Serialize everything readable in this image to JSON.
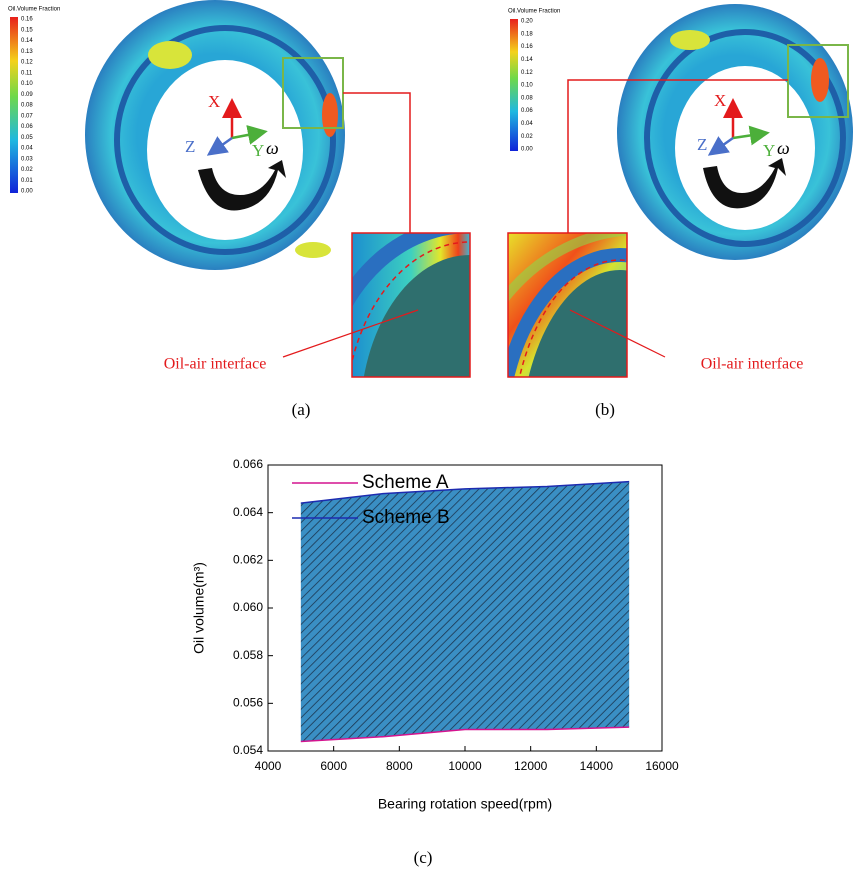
{
  "panel_a": {
    "colorbar": {
      "title": "Oil.Volume Fraction",
      "ticks": [
        "0.16",
        "0.15",
        "0.14",
        "0.13",
        "0.12",
        "0.11",
        "0.10",
        "0.09",
        "0.08",
        "0.07",
        "0.06",
        "0.05",
        "0.04",
        "0.03",
        "0.02",
        "0.01",
        "0.00"
      ]
    },
    "axes": {
      "x": "X",
      "y": "Y",
      "z": "Z",
      "omega": "ω"
    },
    "annotation": "Oil-air interface",
    "label": "(a)"
  },
  "panel_b": {
    "colorbar": {
      "title": "Oil.Volume Fraction",
      "ticks": [
        "0.20",
        "0.18",
        "0.16",
        "0.14",
        "0.12",
        "0.10",
        "0.08",
        "0.06",
        "0.04",
        "0.02",
        "0.00"
      ]
    },
    "axes": {
      "x": "X",
      "y": "Y",
      "z": "Z",
      "omega": "ω"
    },
    "annotation": "Oil-air interface",
    "label": "(b)"
  },
  "chart_data": {
    "type": "line",
    "x_label": "Bearing rotation speed(rpm)",
    "y_label": "Oil volume(m³)",
    "x": [
      5000,
      7500,
      10000,
      12500,
      15000
    ],
    "series": [
      {
        "name": "Scheme A",
        "color": "#d4138f",
        "values": [
          0.0544,
          0.0546,
          0.0549,
          0.0549,
          0.055
        ]
      },
      {
        "name": "Scheme B",
        "color": "#1d2bb0",
        "values": [
          0.0644,
          0.0648,
          0.065,
          0.0651,
          0.0653
        ]
      }
    ],
    "fill_between": {
      "color": "#3a8fc4",
      "hatch": "#1b3550"
    },
    "xlim": [
      4000,
      16000
    ],
    "xticks": [
      4000,
      6000,
      8000,
      10000,
      12000,
      14000,
      16000
    ],
    "ylim": [
      0.054,
      0.066
    ],
    "yticks": [
      0.054,
      0.056,
      0.058,
      {
        "value": 0.06,
        "label": "0.060"
      },
      0.062,
      0.064,
      0.066
    ],
    "legend": "upper left",
    "label": "(c)"
  }
}
